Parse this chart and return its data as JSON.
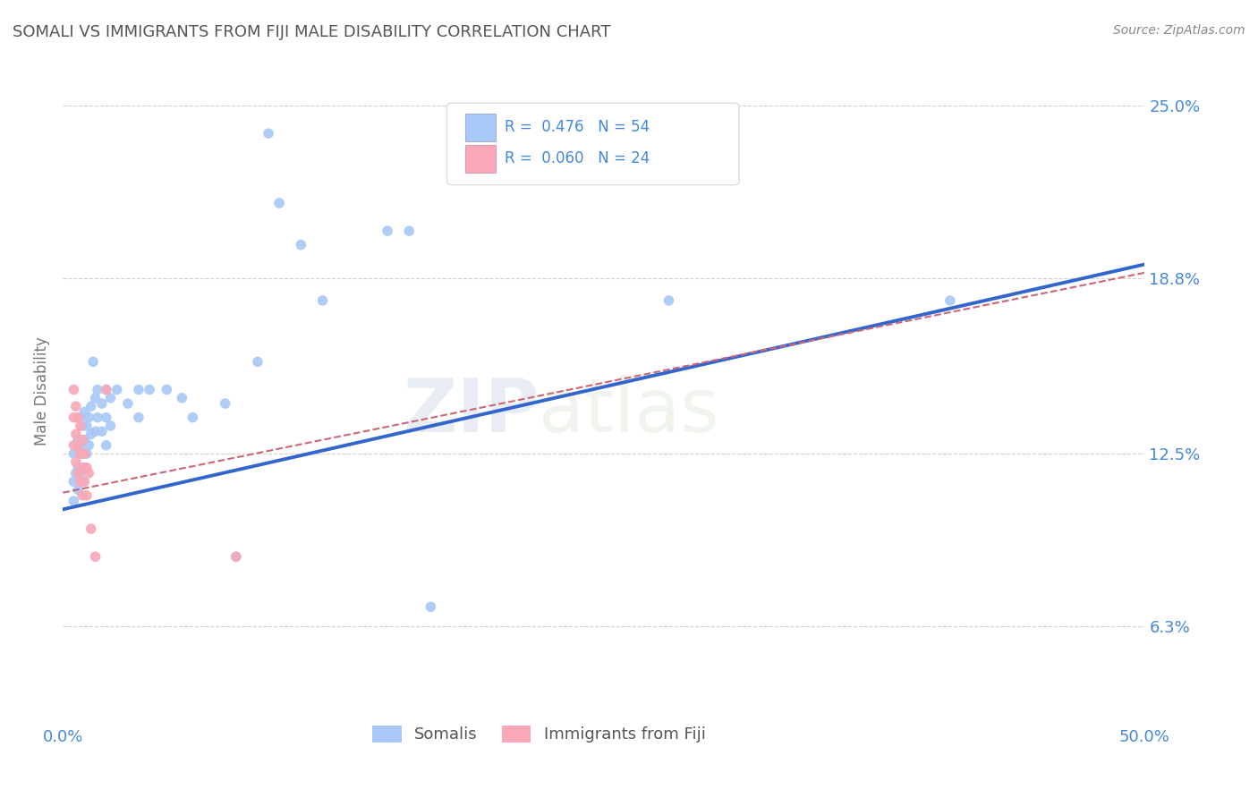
{
  "title": "SOMALI VS IMMIGRANTS FROM FIJI MALE DISABILITY CORRELATION CHART",
  "source": "Source: ZipAtlas.com",
  "ylabel": "Male Disability",
  "ytick_labels": [
    "6.3%",
    "12.5%",
    "18.8%",
    "25.0%"
  ],
  "ytick_values": [
    0.063,
    0.125,
    0.188,
    0.25
  ],
  "xlim": [
    0.0,
    0.5
  ],
  "ylim": [
    0.03,
    0.265
  ],
  "somali_color": "#a8c8f8",
  "fiji_color": "#f8a8b8",
  "somali_line_color": "#3366cc",
  "fiji_line_color": "#cc6677",
  "watermark_zip": "ZIP",
  "watermark_atlas": "atlas",
  "somali_scatter": [
    [
      0.005,
      0.125
    ],
    [
      0.005,
      0.115
    ],
    [
      0.005,
      0.108
    ],
    [
      0.006,
      0.118
    ],
    [
      0.007,
      0.13
    ],
    [
      0.007,
      0.12
    ],
    [
      0.007,
      0.112
    ],
    [
      0.008,
      0.138
    ],
    [
      0.008,
      0.128
    ],
    [
      0.008,
      0.118
    ],
    [
      0.009,
      0.135
    ],
    [
      0.009,
      0.125
    ],
    [
      0.009,
      0.115
    ],
    [
      0.01,
      0.14
    ],
    [
      0.01,
      0.13
    ],
    [
      0.01,
      0.12
    ],
    [
      0.011,
      0.135
    ],
    [
      0.011,
      0.125
    ],
    [
      0.012,
      0.138
    ],
    [
      0.012,
      0.128
    ],
    [
      0.013,
      0.142
    ],
    [
      0.013,
      0.132
    ],
    [
      0.014,
      0.158
    ],
    [
      0.015,
      0.145
    ],
    [
      0.015,
      0.133
    ],
    [
      0.016,
      0.148
    ],
    [
      0.016,
      0.138
    ],
    [
      0.018,
      0.143
    ],
    [
      0.018,
      0.133
    ],
    [
      0.02,
      0.148
    ],
    [
      0.02,
      0.138
    ],
    [
      0.02,
      0.128
    ],
    [
      0.022,
      0.145
    ],
    [
      0.022,
      0.135
    ],
    [
      0.025,
      0.148
    ],
    [
      0.03,
      0.143
    ],
    [
      0.035,
      0.148
    ],
    [
      0.035,
      0.138
    ],
    [
      0.04,
      0.148
    ],
    [
      0.048,
      0.148
    ],
    [
      0.055,
      0.145
    ],
    [
      0.06,
      0.138
    ],
    [
      0.075,
      0.143
    ],
    [
      0.08,
      0.088
    ],
    [
      0.09,
      0.158
    ],
    [
      0.095,
      0.24
    ],
    [
      0.1,
      0.215
    ],
    [
      0.11,
      0.2
    ],
    [
      0.12,
      0.18
    ],
    [
      0.15,
      0.205
    ],
    [
      0.16,
      0.205
    ],
    [
      0.17,
      0.07
    ],
    [
      0.28,
      0.18
    ],
    [
      0.41,
      0.18
    ]
  ],
  "fiji_scatter": [
    [
      0.005,
      0.148
    ],
    [
      0.005,
      0.138
    ],
    [
      0.005,
      0.128
    ],
    [
      0.006,
      0.142
    ],
    [
      0.006,
      0.132
    ],
    [
      0.006,
      0.122
    ],
    [
      0.007,
      0.138
    ],
    [
      0.007,
      0.128
    ],
    [
      0.007,
      0.118
    ],
    [
      0.008,
      0.135
    ],
    [
      0.008,
      0.125
    ],
    [
      0.008,
      0.115
    ],
    [
      0.009,
      0.13
    ],
    [
      0.009,
      0.12
    ],
    [
      0.009,
      0.11
    ],
    [
      0.01,
      0.125
    ],
    [
      0.01,
      0.115
    ],
    [
      0.011,
      0.12
    ],
    [
      0.011,
      0.11
    ],
    [
      0.012,
      0.118
    ],
    [
      0.013,
      0.098
    ],
    [
      0.015,
      0.088
    ],
    [
      0.02,
      0.148
    ],
    [
      0.08,
      0.088
    ]
  ],
  "somali_line_x": [
    0.0,
    0.5
  ],
  "somali_line_y": [
    0.105,
    0.193
  ],
  "fiji_line_x": [
    0.0,
    0.5
  ],
  "fiji_line_y": [
    0.111,
    0.19
  ],
  "background_color": "#ffffff",
  "grid_color": "#cccccc",
  "title_color": "#555555",
  "axis_label_color": "#4488dd",
  "dot_size": 70
}
